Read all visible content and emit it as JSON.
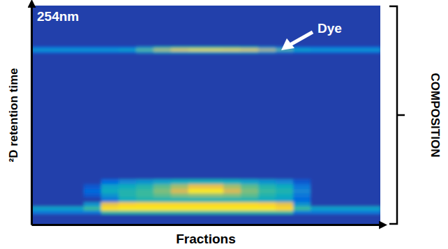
{
  "chart_data": {
    "type": "heatmap",
    "title": "254nm",
    "x_label": "Fractions",
    "y_label": "²D retention time",
    "annotations": [
      {
        "text": "Dye"
      },
      {
        "text": "COMPOSITION"
      }
    ],
    "xlim": [
      0,
      100
    ],
    "ylim": [
      0,
      100
    ],
    "xticks": [],
    "yticks": [],
    "tick_labels": false,
    "zlim": [
      0,
      1
    ],
    "x_edges": [
      0,
      5,
      10,
      15,
      20,
      25,
      30,
      35,
      40,
      45,
      50,
      55,
      60,
      65,
      70,
      75,
      80,
      85,
      90,
      95,
      100
    ],
    "y_edges": [
      0,
      5,
      6.5,
      8.5,
      10.5,
      12.5,
      14.5,
      16.5,
      18.5,
      21,
      30,
      78.5,
      79.5,
      80.5,
      81.5,
      90,
      100
    ],
    "cells": [
      [
        0.05,
        0.05,
        0.05,
        0.05,
        0.05,
        0.05,
        0.05,
        0.05,
        0.05,
        0.05,
        0.05,
        0.05,
        0.05,
        0.05,
        0.05,
        0.05,
        0.05,
        0.05,
        0.05,
        0.05
      ],
      [
        0.2,
        0.2,
        0.2,
        0.2,
        0.5,
        0.5,
        0.5,
        0.5,
        0.5,
        0.5,
        0.5,
        0.5,
        0.5,
        0.5,
        0.5,
        0.2,
        0.2,
        0.2,
        0.2,
        0.2
      ],
      [
        0.35,
        0.35,
        0.35,
        0.5,
        0.92,
        0.95,
        0.95,
        0.95,
        0.95,
        0.95,
        0.95,
        0.95,
        0.95,
        0.95,
        0.9,
        0.5,
        0.35,
        0.35,
        0.35,
        0.35
      ],
      [
        0.05,
        0.05,
        0.05,
        0.3,
        0.8,
        0.88,
        0.9,
        0.9,
        0.9,
        0.9,
        0.9,
        0.9,
        0.9,
        0.88,
        0.8,
        0.3,
        0.05,
        0.05,
        0.05,
        0.05
      ],
      [
        0.05,
        0.05,
        0.05,
        0.05,
        0.2,
        0.4,
        0.45,
        0.45,
        0.45,
        0.45,
        0.45,
        0.45,
        0.45,
        0.4,
        0.35,
        0.15,
        0.05,
        0.05,
        0.05,
        0.05
      ],
      [
        0.05,
        0.05,
        0.05,
        0.1,
        0.3,
        0.45,
        0.5,
        0.55,
        0.6,
        0.62,
        0.62,
        0.6,
        0.55,
        0.45,
        0.4,
        0.2,
        0.05,
        0.05,
        0.05,
        0.05
      ],
      [
        0.05,
        0.05,
        0.05,
        0.15,
        0.4,
        0.45,
        0.5,
        0.6,
        0.75,
        0.95,
        0.95,
        0.75,
        0.6,
        0.5,
        0.45,
        0.25,
        0.05,
        0.05,
        0.05,
        0.05
      ],
      [
        0.05,
        0.05,
        0.05,
        0.1,
        0.35,
        0.4,
        0.45,
        0.55,
        0.65,
        0.8,
        0.8,
        0.65,
        0.55,
        0.45,
        0.4,
        0.2,
        0.05,
        0.05,
        0.05,
        0.05
      ],
      [
        0.05,
        0.05,
        0.05,
        0.05,
        0.15,
        0.25,
        0.3,
        0.35,
        0.4,
        0.42,
        0.42,
        0.4,
        0.35,
        0.3,
        0.25,
        0.1,
        0.05,
        0.05,
        0.05,
        0.05
      ],
      [
        0.05,
        0.05,
        0.05,
        0.05,
        0.05,
        0.05,
        0.05,
        0.05,
        0.05,
        0.05,
        0.05,
        0.05,
        0.05,
        0.05,
        0.05,
        0.05,
        0.05,
        0.05,
        0.05,
        0.05
      ],
      [
        0.05,
        0.05,
        0.05,
        0.05,
        0.05,
        0.05,
        0.05,
        0.05,
        0.05,
        0.05,
        0.05,
        0.05,
        0.05,
        0.05,
        0.05,
        0.05,
        0.05,
        0.05,
        0.05,
        0.05
      ],
      [
        0.15,
        0.15,
        0.15,
        0.15,
        0.15,
        0.15,
        0.3,
        0.4,
        0.4,
        0.4,
        0.4,
        0.4,
        0.4,
        0.3,
        0.2,
        0.15,
        0.15,
        0.15,
        0.15,
        0.15
      ],
      [
        0.35,
        0.35,
        0.35,
        0.35,
        0.35,
        0.4,
        0.55,
        0.7,
        0.85,
        0.92,
        0.92,
        0.9,
        0.85,
        0.7,
        0.55,
        0.4,
        0.35,
        0.35,
        0.35,
        0.35
      ],
      [
        0.15,
        0.15,
        0.15,
        0.15,
        0.15,
        0.15,
        0.3,
        0.45,
        0.5,
        0.5,
        0.5,
        0.5,
        0.45,
        0.3,
        0.2,
        0.15,
        0.15,
        0.15,
        0.15,
        0.15
      ],
      [
        0.05,
        0.05,
        0.05,
        0.05,
        0.05,
        0.05,
        0.05,
        0.05,
        0.05,
        0.05,
        0.05,
        0.05,
        0.05,
        0.05,
        0.05,
        0.05,
        0.05,
        0.05,
        0.05,
        0.05
      ],
      [
        0.05,
        0.05,
        0.05,
        0.05,
        0.05,
        0.05,
        0.05,
        0.05,
        0.05,
        0.05,
        0.05,
        0.05,
        0.05,
        0.05,
        0.05,
        0.05,
        0.05,
        0.05,
        0.05,
        0.05
      ]
    ]
  }
}
